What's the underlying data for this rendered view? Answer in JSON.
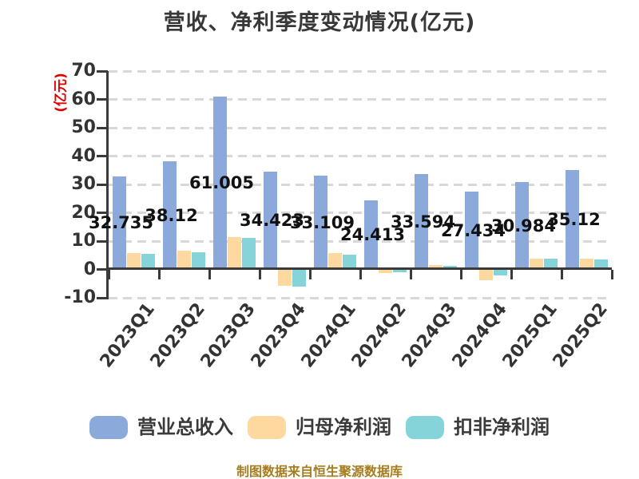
{
  "footer": "制图数据来自恒生聚源数据库",
  "colors": {
    "revenue_bar": "#8ca9dc",
    "net_profit_bar": "#fdd9a0",
    "non_gaap_bar": "#85d4d9",
    "axis": "#3a3a3a",
    "grid": "#d8d8d8",
    "tick_text": "#333333",
    "title_text": "#383838",
    "ylabel_text": "#dd0000",
    "footer_text": "#a67d1f",
    "bar_label_text": "#111111"
  },
  "chart_data": {
    "type": "bar",
    "title": "营收、净利季度变动情况(亿元)",
    "ylabel": "(亿元)",
    "xlabel": "",
    "ylim": [
      -10,
      70
    ],
    "yticks": [
      70,
      60,
      50,
      40,
      30,
      20,
      10,
      0,
      -10
    ],
    "grid": "horizontal-dashed",
    "legend_position": "bottom",
    "categories": [
      "2023Q1",
      "2023Q2",
      "2023Q3",
      "2023Q4",
      "2024Q1",
      "2024Q2",
      "2024Q3",
      "2024Q4",
      "2025Q1",
      "2025Q2"
    ],
    "series": [
      {
        "key": "total-revenue",
        "name": "营业总收入",
        "color": "#8ca9dc",
        "values": [
          32.735,
          38.12,
          61.005,
          34.423,
          33.109,
          24.413,
          33.594,
          27.434,
          30.984,
          35.12
        ],
        "estimated": false
      },
      {
        "key": "net-profit",
        "name": "归母净利润",
        "color": "#fdd9a0",
        "values": [
          5.9,
          6.5,
          11.4,
          -5.8,
          5.8,
          -1.3,
          1.6,
          -3.8,
          3.9,
          3.9
        ],
        "estimated": true
      },
      {
        "key": "non-gaap-profit",
        "name": "扣非净利润",
        "color": "#85d4d9",
        "values": [
          5.6,
          6.1,
          11.2,
          -6.1,
          5.3,
          -1.1,
          1.4,
          -2.2,
          3.7,
          3.6
        ],
        "estimated": true
      }
    ],
    "bar_labels": [
      "32.735",
      "38.12",
      "61.005",
      "34.423",
      "33.109",
      "24.413",
      "33.594",
      "27.434",
      "30.984",
      "35.12"
    ]
  }
}
